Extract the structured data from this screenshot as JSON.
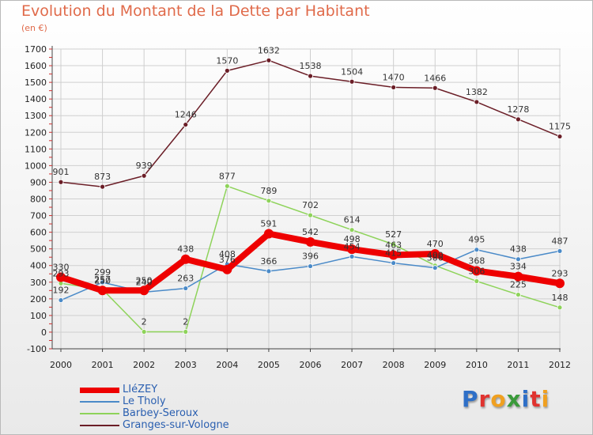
{
  "title": "Evolution du Montant de la Dette par Habitant",
  "subtitle": "(en €)",
  "chart_data": {
    "type": "line",
    "title": "Evolution du Montant de la Dette par Habitant",
    "subtitle": "(en €)",
    "xlabel": "",
    "ylabel": "",
    "categories": [
      "2000",
      "2001",
      "2002",
      "2003",
      "2004",
      "2005",
      "2006",
      "2007",
      "2008",
      "2009",
      "2010",
      "2011",
      "2012"
    ],
    "ylim": [
      -100,
      1700
    ],
    "yticks": [
      -100,
      0,
      100,
      200,
      300,
      400,
      500,
      600,
      700,
      800,
      900,
      1000,
      1100,
      1200,
      1300,
      1400,
      1500,
      1600,
      1700
    ],
    "grid": true,
    "legend_position": "bottom-left",
    "series": [
      {
        "name": "Granges-sur-Vologne",
        "color": "#6b1e27",
        "values": [
          901,
          873,
          939,
          1246,
          1570,
          1632,
          1538,
          1504,
          1470,
          1466,
          1382,
          1278,
          1175
        ]
      },
      {
        "name": "Barbey-Seroux",
        "color": "#8ed35a",
        "values": [
          293,
          257,
          2,
          2,
          877,
          789,
          702,
          614,
          527,
          400,
          306,
          225,
          148
        ]
      },
      {
        "name": "Le Tholy",
        "color": "#4a8ac8",
        "values": [
          192,
          299,
          240,
          263,
          408,
          366,
          396,
          454,
          415,
          386,
          495,
          438,
          487
        ]
      },
      {
        "name": "LIéZEY",
        "color": "#ee0000",
        "values": [
          330,
          250,
          250,
          438,
          376,
          591,
          542,
          498,
          463,
          470,
          368,
          334,
          293
        ]
      }
    ],
    "data_labels": [
      [
        "901",
        "873",
        "939",
        "1246",
        "1570",
        "1632",
        "1538",
        "1504",
        "1470",
        "1466",
        "1382",
        "1278",
        "1175"
      ],
      [
        "293",
        "257",
        "2",
        "2",
        "877",
        "789",
        "702",
        "614",
        "527",
        "400",
        "306",
        "225",
        "148"
      ],
      [
        "192",
        "299",
        "240",
        "263",
        "408",
        "366",
        "396",
        "454",
        "415",
        "386",
        "495",
        "438",
        "487"
      ],
      [
        "330",
        "250",
        "250",
        "438",
        "376",
        "591",
        "542",
        "498",
        "463",
        "470",
        "368",
        "334",
        "293"
      ]
    ]
  },
  "legend": [
    {
      "label": "LIéZEY",
      "color": "#ee0000"
    },
    {
      "label": "Le Tholy",
      "color": "#4a8ac8"
    },
    {
      "label": "Barbey-Seroux",
      "color": "#8ed35a"
    },
    {
      "label": "Granges-sur-Vologne",
      "color": "#6b1e27"
    }
  ],
  "logo": {
    "text": "Proxiti",
    "letters": [
      "P",
      "r",
      "o",
      "x",
      "i",
      "t",
      "i"
    ],
    "colors": [
      "#2e6fc7",
      "#e0332f",
      "#f0a020",
      "#3a9a3a",
      "#2e6fc7",
      "#e0332f",
      "#f0a020"
    ]
  }
}
